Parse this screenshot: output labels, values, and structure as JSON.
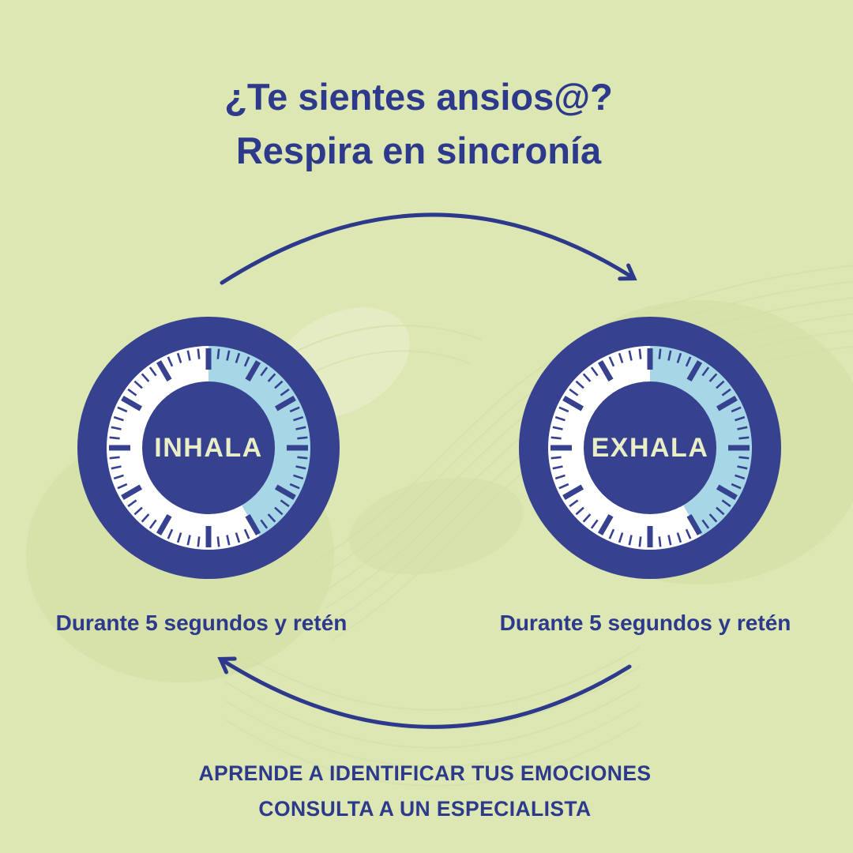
{
  "title": {
    "line1": "¿Te sientes ansios@?",
    "line2": "Respira en sincronía"
  },
  "clocks": [
    {
      "label": "INHALA",
      "caption": "Durante 5 segundos y retén"
    },
    {
      "label": "EXHALA",
      "caption": "Durante 5 segundos y retén"
    }
  ],
  "dial": {
    "arc_start_deg": 0,
    "arc_end_deg": 150,
    "ticks_total": 60,
    "major_every": 5
  },
  "footer": {
    "line1": "APRENDE A IDENTIFICAR TUS EMOCIONES",
    "line2": "CONSULTA A UN ESPECIALISTA"
  },
  "icons": {
    "top_arrow": "curved-arrow-right",
    "bottom_arrow": "curved-arrow-left"
  },
  "colors": {
    "background": "#dde7b4",
    "text_navy": "#2d398b",
    "ring_navy": "#36418f",
    "arc_light_blue": "#a7d7e6",
    "dial_white": "#ffffff",
    "label_cream": "#e9eec7",
    "shadow_green": "#d2dda3",
    "contour_line": "#d3dea8"
  }
}
